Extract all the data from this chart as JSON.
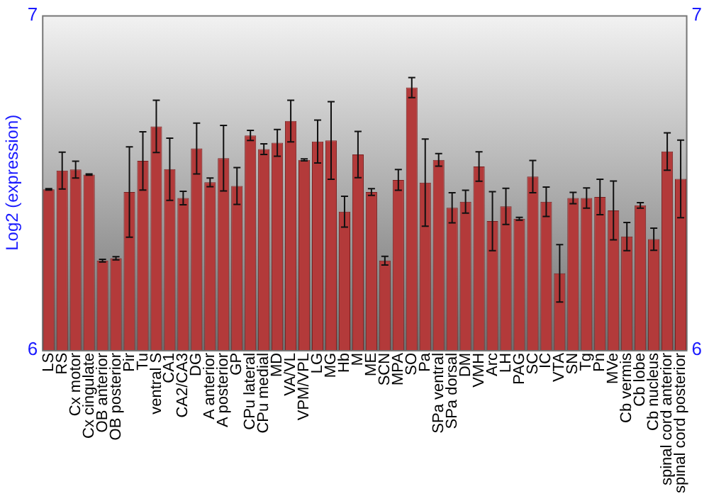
{
  "chart_data": {
    "type": "bar",
    "ylabel": "Log2 (expression)",
    "categories": [
      "LS",
      "RS",
      "Cx motor",
      "Cx cingulate",
      "OB anterior",
      "OB posterior",
      "Pir",
      "Tu",
      "ventral S",
      "CA1",
      "CA2/CA3",
      "DG",
      "A anterior",
      "A posterior",
      "GP",
      "CPu lateral",
      "CPu medial",
      "MD",
      "VA/VL",
      "VPM/VPL",
      "LG",
      "MG",
      "Hb",
      "M",
      "ME",
      "SCN",
      "MPA",
      "SO",
      "Pa",
      "SPa ventral",
      "SPa dorsal",
      "DM",
      "VMH",
      "Arc",
      "LH",
      "PAG",
      "SC",
      "IC",
      "VTA",
      "SN",
      "Tg",
      "Pn",
      "MVe",
      "Cb vermis",
      "Cb lobe",
      "Cb nucleus",
      "spinal cord anterior",
      "spinal cord posterior"
    ],
    "values": [
      6.48,
      6.536,
      6.539,
      6.524,
      6.267,
      6.274,
      6.472,
      6.565,
      6.668,
      6.54,
      6.454,
      6.602,
      6.501,
      6.573,
      6.49,
      6.641,
      6.6,
      6.619,
      6.684,
      6.568,
      6.623,
      6.626,
      6.413,
      6.584,
      6.472,
      6.267,
      6.508,
      6.784,
      6.5,
      6.568,
      6.425,
      6.443,
      6.548,
      6.385,
      6.429,
      6.392,
      6.518,
      6.443,
      6.229,
      6.454,
      6.454,
      6.457,
      6.417,
      6.339,
      6.432,
      6.331,
      6.593,
      6.511
    ],
    "errors": [
      0.002,
      0.055,
      0.025,
      0.002,
      0.004,
      0.005,
      0.135,
      0.087,
      0.078,
      0.093,
      0.02,
      0.076,
      0.013,
      0.098,
      0.055,
      0.015,
      0.016,
      0.04,
      0.062,
      0.003,
      0.064,
      0.116,
      0.046,
      0.069,
      0.01,
      0.013,
      0.031,
      0.03,
      0.13,
      0.019,
      0.045,
      0.034,
      0.044,
      0.088,
      0.054,
      0.004,
      0.048,
      0.044,
      0.086,
      0.017,
      0.03,
      0.053,
      0.088,
      0.042,
      0.008,
      0.033,
      0.056,
      0.116
    ],
    "color": "#b33a3a",
    "ylim": [
      6,
      7
    ],
    "yticks": [
      6,
      7
    ],
    "y2lim": [
      6,
      7
    ],
    "y2ticks": [
      6,
      7
    ],
    "grid": false,
    "legend": false
  }
}
